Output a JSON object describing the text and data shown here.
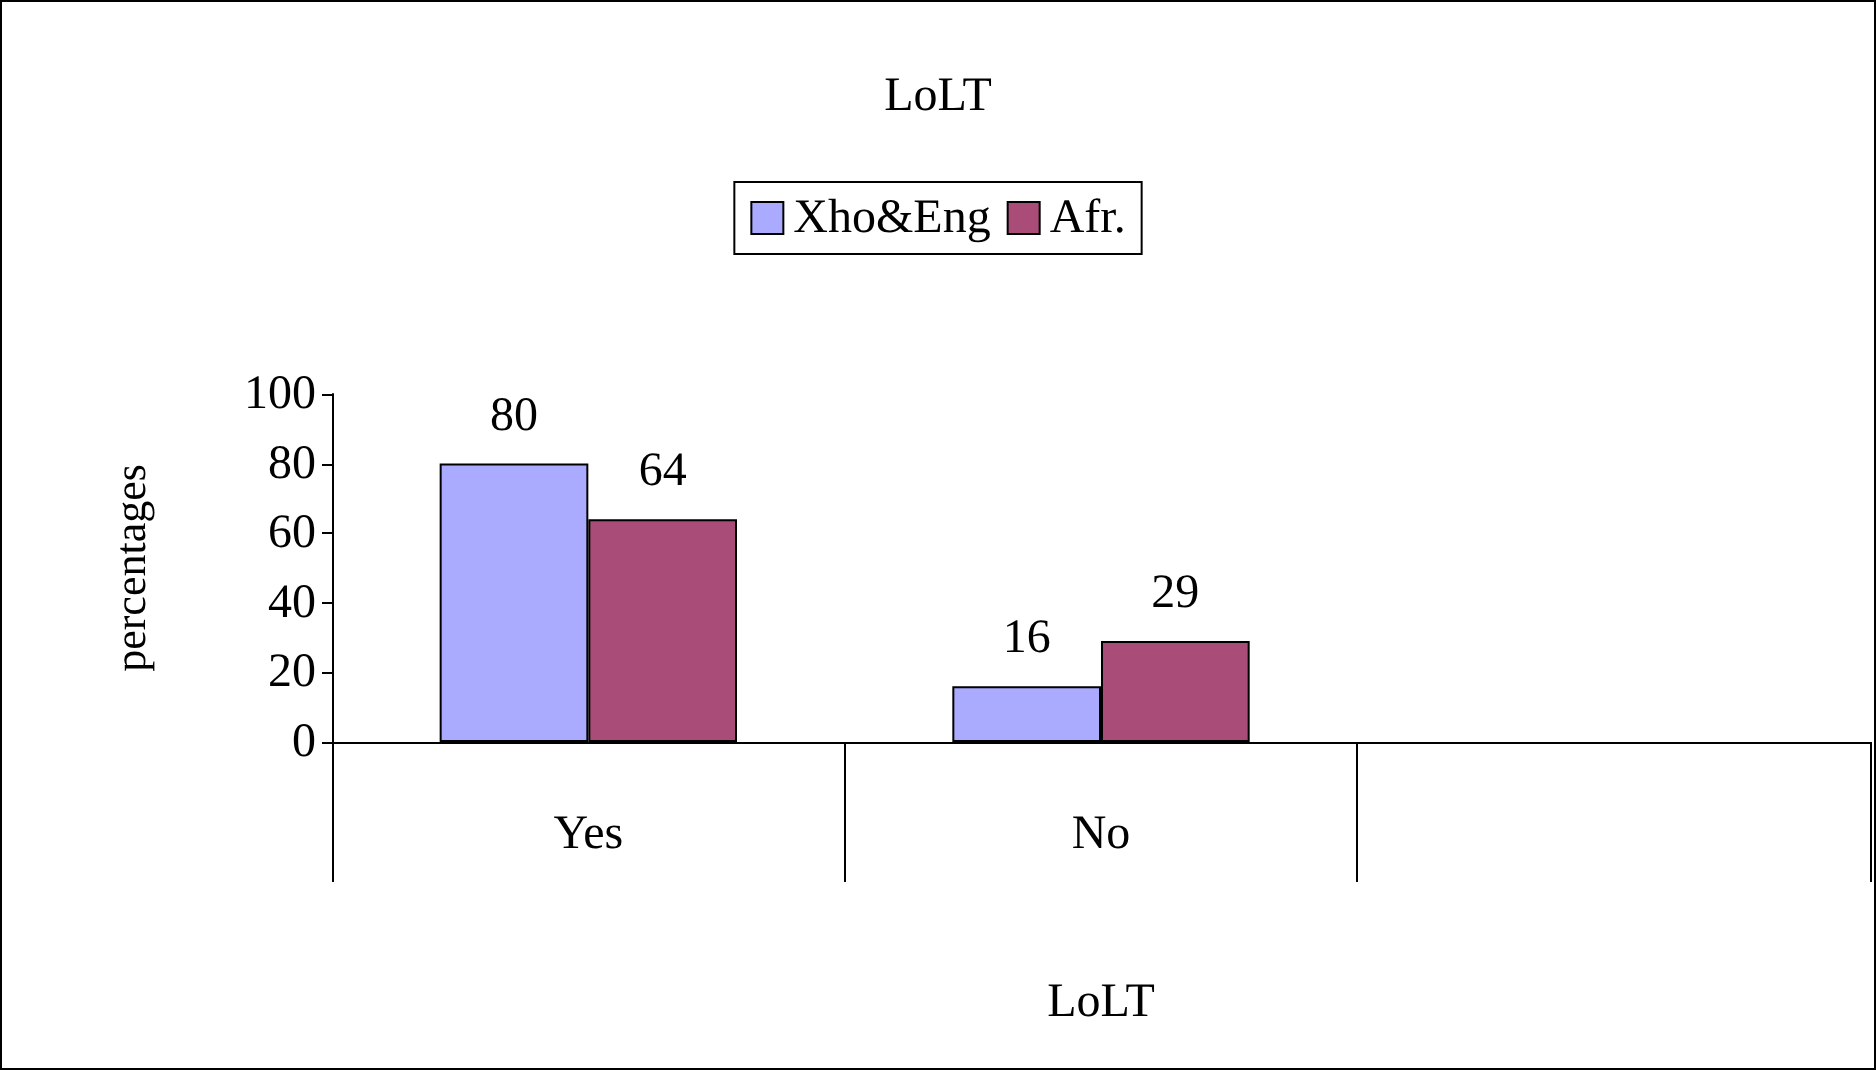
{
  "chart_data": {
    "type": "bar",
    "title": "LoLT",
    "xlabel": "LoLT",
    "ylabel": "percentages",
    "categories": [
      "Yes",
      "No",
      null
    ],
    "series": [
      {
        "name": "Xho&Eng",
        "color": "#aaaaff",
        "values": [
          80,
          16,
          null
        ]
      },
      {
        "name": "Afr.",
        "color": "#aa4c78",
        "values": [
          64,
          29,
          null
        ]
      }
    ],
    "ylim": [
      0,
      100
    ],
    "yticks": [
      0,
      20,
      40,
      60,
      80,
      100
    ],
    "data_labels": true,
    "legend": "top",
    "grid": false
  }
}
